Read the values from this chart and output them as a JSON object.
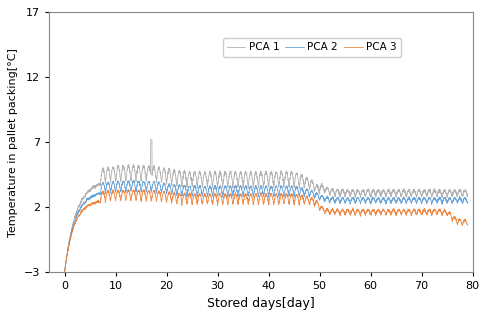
{
  "xlabel": "Stored days[day]",
  "ylabel": "Temperature in pallet packing[°C]",
  "xlim": [
    -3,
    80
  ],
  "ylim": [
    -3,
    17
  ],
  "xticks": [
    0,
    10,
    20,
    30,
    40,
    50,
    60,
    70,
    80
  ],
  "yticks": [
    -3,
    2,
    7,
    12,
    17
  ],
  "legend_labels": [
    "PCA 1",
    "PCA 2",
    "PCA 3"
  ],
  "colors": [
    "#5B9BD5",
    "#ED7D31",
    "#A5A5A5"
  ],
  "linewidth": 0.6,
  "figsize": [
    4.88,
    3.18
  ],
  "dpi": 100
}
